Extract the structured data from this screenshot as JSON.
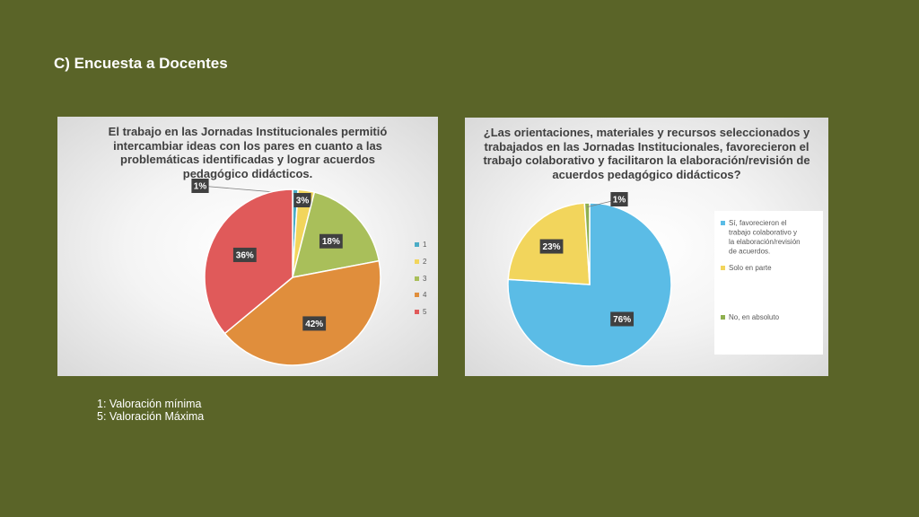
{
  "slide": {
    "title": "C) Encuesta a Docentes",
    "notes": [
      "1: Valoración mínima",
      "5: Valoración Máxima"
    ]
  },
  "chart_data": [
    {
      "type": "pie",
      "title": "El trabajo en las Jornadas Institucionales permitió intercambiar ideas con los pares en cuanto a las problemáticas identificadas y lograr acuerdos pedagógico didácticos.",
      "categories": [
        "1",
        "2",
        "3",
        "4",
        "5"
      ],
      "values": [
        1,
        3,
        18,
        42,
        36
      ],
      "data_labels": [
        "1%",
        "3%",
        "18%",
        "42%",
        "36%"
      ],
      "colors": [
        "#4bacc6",
        "#f2d55c",
        "#a9bf5a",
        "#e08e3c",
        "#e05a5a"
      ],
      "legend_position": "right"
    },
    {
      "type": "pie",
      "title": "¿Las orientaciones, materiales y recursos seleccionados y trabajados en las Jornadas Institucionales, favorecieron el trabajo colaborativo y facilitaron la elaboración/revisión de acuerdos pedagógico didácticos?",
      "categories": [
        "Sí, favorecieron el trabajo colaborativo y la elaboración/revisión de acuerdos.",
        "Solo en parte",
        "No, en absoluto"
      ],
      "values": [
        76,
        23,
        1
      ],
      "data_labels": [
        "76%",
        "23%",
        "1%"
      ],
      "colors": [
        "#5bbce6",
        "#f2d55c",
        "#8fb050"
      ],
      "legend_position": "right"
    }
  ]
}
